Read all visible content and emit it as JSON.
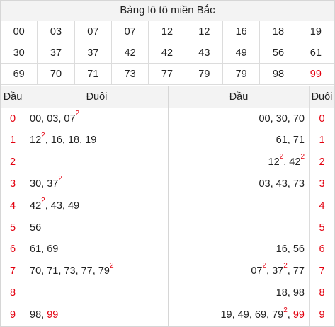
{
  "title": "Bảng lô tô miền Bắc",
  "numbers": [
    "00",
    "03",
    "07",
    "07",
    "12",
    "12",
    "16",
    "18",
    "19",
    "30",
    "37",
    "37",
    "42",
    "42",
    "43",
    "49",
    "56",
    "61",
    "69",
    "70",
    "71",
    "73",
    "77",
    "79",
    "79",
    "98",
    "99"
  ],
  "highlight_numbers": [
    "99"
  ],
  "accent_color": "#e3000f",
  "left_table": {
    "header": {
      "dau": "Đầu",
      "duoi": "Đuôi"
    },
    "rows": [
      {
        "digit": "0",
        "items": [
          {
            "v": "00"
          },
          {
            "v": "03"
          },
          {
            "v": "07",
            "sup": "2"
          }
        ]
      },
      {
        "digit": "1",
        "items": [
          {
            "v": "12",
            "sup": "2"
          },
          {
            "v": "16"
          },
          {
            "v": "18"
          },
          {
            "v": "19"
          }
        ]
      },
      {
        "digit": "2",
        "items": []
      },
      {
        "digit": "3",
        "items": [
          {
            "v": "30"
          },
          {
            "v": "37",
            "sup": "2"
          }
        ]
      },
      {
        "digit": "4",
        "items": [
          {
            "v": "42",
            "sup": "2"
          },
          {
            "v": "43"
          },
          {
            "v": "49"
          }
        ]
      },
      {
        "digit": "5",
        "items": [
          {
            "v": "56"
          }
        ]
      },
      {
        "digit": "6",
        "items": [
          {
            "v": "61"
          },
          {
            "v": "69"
          }
        ]
      },
      {
        "digit": "7",
        "items": [
          {
            "v": "70"
          },
          {
            "v": "71"
          },
          {
            "v": "73"
          },
          {
            "v": "77"
          },
          {
            "v": "79",
            "sup": "2"
          }
        ]
      },
      {
        "digit": "8",
        "items": []
      },
      {
        "digit": "9",
        "items": [
          {
            "v": "98"
          },
          {
            "v": "99",
            "red": true
          }
        ]
      }
    ]
  },
  "right_table": {
    "header": {
      "dau": "Đầu",
      "duoi": "Đuôi"
    },
    "rows": [
      {
        "digit": "0",
        "items": [
          {
            "v": "00"
          },
          {
            "v": "30"
          },
          {
            "v": "70"
          }
        ]
      },
      {
        "digit": "1",
        "items": [
          {
            "v": "61"
          },
          {
            "v": "71"
          }
        ]
      },
      {
        "digit": "2",
        "items": [
          {
            "v": "12",
            "sup": "2"
          },
          {
            "v": "42",
            "sup": "2"
          }
        ]
      },
      {
        "digit": "3",
        "items": [
          {
            "v": "03"
          },
          {
            "v": "43"
          },
          {
            "v": "73"
          }
        ]
      },
      {
        "digit": "4",
        "items": []
      },
      {
        "digit": "5",
        "items": []
      },
      {
        "digit": "6",
        "items": [
          {
            "v": "16"
          },
          {
            "v": "56"
          }
        ]
      },
      {
        "digit": "7",
        "items": [
          {
            "v": "07",
            "sup": "2"
          },
          {
            "v": "37",
            "sup": "2"
          },
          {
            "v": "77"
          }
        ]
      },
      {
        "digit": "8",
        "items": [
          {
            "v": "18"
          },
          {
            "v": "98"
          }
        ]
      },
      {
        "digit": "9",
        "items": [
          {
            "v": "19"
          },
          {
            "v": "49"
          },
          {
            "v": "69"
          },
          {
            "v": "79",
            "sup": "2"
          },
          {
            "v": "99",
            "red": true
          }
        ]
      }
    ]
  }
}
